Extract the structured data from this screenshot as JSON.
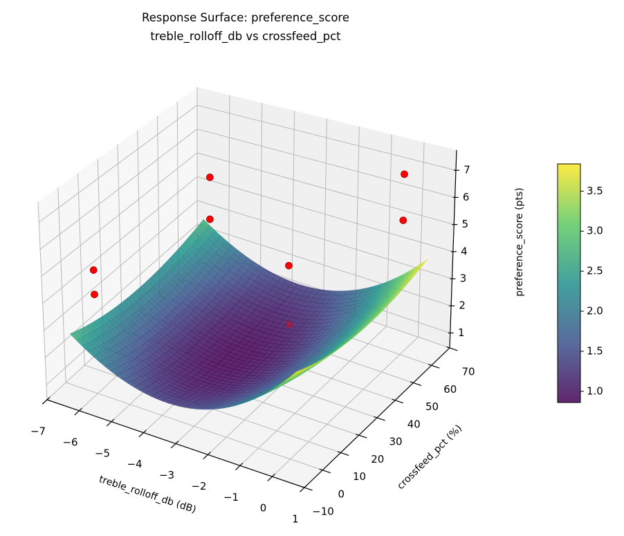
{
  "chart_data": {
    "type": "surface3d",
    "title": [
      "Response Surface: preference_score",
      "treble_rolloff_db vs crossfeed_pct"
    ],
    "xlabel": "treble_rolloff_db (dB)",
    "ylabel": "crossfeed_pct (%)",
    "zlabel": "preference_score (pts)",
    "xlim": [
      -7,
      1
    ],
    "ylim": [
      -10,
      70
    ],
    "zlim": [
      0.45,
      7.75
    ],
    "xticks": [
      -7,
      -6,
      -5,
      -4,
      -3,
      -2,
      -1,
      0,
      1
    ],
    "yticks": [
      -10,
      0,
      10,
      20,
      30,
      40,
      50,
      60,
      70
    ],
    "zticks": [
      1,
      2,
      3,
      4,
      5,
      6,
      7
    ],
    "grid": true,
    "colormap": "viridis",
    "surface": {
      "x_range": [
        -6.5,
        0.5
      ],
      "y_range": [
        -5,
        65
      ],
      "minimum": {
        "x": -3.5,
        "y": 30,
        "z": 0.86
      },
      "curvature_x": 0.154,
      "curvature_y": 0.000425
    },
    "points": [
      {
        "x": -6,
        "y": 0,
        "z": 5.0
      },
      {
        "x": -6,
        "y": 0,
        "z": 4.1
      },
      {
        "x": -6,
        "y": 60,
        "z": 5.0
      },
      {
        "x": -6,
        "y": 60,
        "z": 3.3
      },
      {
        "x": 0,
        "y": 60,
        "z": 7.1
      },
      {
        "x": 0,
        "y": 60,
        "z": 5.4
      },
      {
        "x": 0,
        "y": 0,
        "z": 7.0
      },
      {
        "x": 0,
        "y": 0,
        "z": 5.0
      }
    ],
    "point_color": "#ff0000",
    "colorbar": {
      "range": [
        0.86,
        3.84
      ],
      "ticks": [
        "1.0",
        "1.5",
        "2.0",
        "2.5",
        "3.0",
        "3.5"
      ]
    }
  }
}
